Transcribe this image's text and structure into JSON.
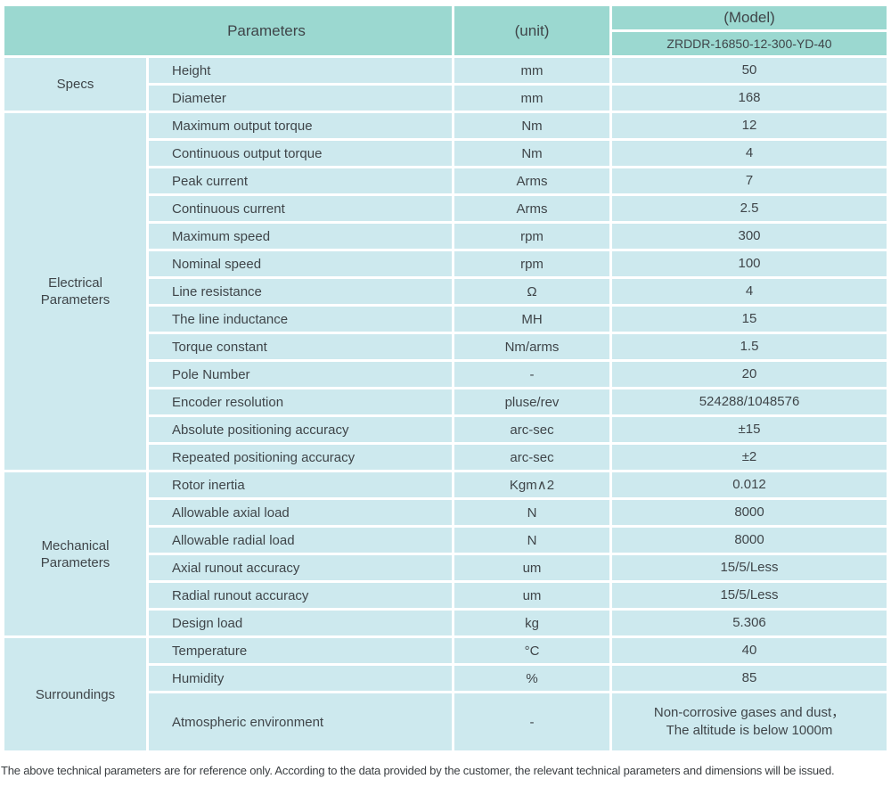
{
  "table": {
    "header": {
      "parameters_label": "Parameters",
      "unit_label": "(unit)",
      "model_label": "(Model)",
      "model_value": "ZRDDR-16850-12-300-YD-40"
    },
    "sections": [
      {
        "name": "Specs",
        "rows": [
          {
            "param": "Height",
            "unit": "mm",
            "value": "50"
          },
          {
            "param": "Diameter",
            "unit": "mm",
            "value": "168"
          }
        ]
      },
      {
        "name": "Electrical\nParameters",
        "rows": [
          {
            "param": "Maximum output torque",
            "unit": "Nm",
            "value": "12"
          },
          {
            "param": "Continuous output torque",
            "unit": "Nm",
            "value": "4"
          },
          {
            "param": "Peak current",
            "unit": "Arms",
            "value": "7"
          },
          {
            "param": "Continuous current",
            "unit": "Arms",
            "value": "2.5"
          },
          {
            "param": "Maximum speed",
            "unit": "rpm",
            "value": "300"
          },
          {
            "param": "Nominal speed",
            "unit": "rpm",
            "value": "100"
          },
          {
            "param": "Line resistance",
            "unit": "Ω",
            "value": "4"
          },
          {
            "param": "The line inductance",
            "unit": "MH",
            "value": "15"
          },
          {
            "param": "Torque constant",
            "unit": "Nm/arms",
            "value": "1.5"
          },
          {
            "param": "Pole Number",
            "unit": "-",
            "value": "20"
          },
          {
            "param": "Encoder resolution",
            "unit": "pluse/rev",
            "value": "524288/1048576"
          },
          {
            "param": "Absolute positioning accuracy",
            "unit": "arc-sec",
            "value": "±15"
          },
          {
            "param": "Repeated positioning accuracy",
            "unit": "arc-sec",
            "value": "±2"
          }
        ]
      },
      {
        "name": "Mechanical\nParameters",
        "rows": [
          {
            "param": "Rotor inertia",
            "unit": "Kgm∧2",
            "value": "0.012"
          },
          {
            "param": "Allowable axial load",
            "unit": "N",
            "value": "8000"
          },
          {
            "param": "Allowable radial load",
            "unit": "N",
            "value": "8000"
          },
          {
            "param": "Axial runout accuracy",
            "unit": "um",
            "value": "15/5/Less"
          },
          {
            "param": "Radial runout accuracy",
            "unit": "um",
            "value": "15/5/Less"
          },
          {
            "param": "Design load",
            "unit": "kg",
            "value": "5.306"
          }
        ]
      },
      {
        "name": "Surroundings",
        "rows": [
          {
            "param": "Temperature",
            "unit": "°C",
            "value": "40"
          },
          {
            "param": "Humidity",
            "unit": "%",
            "value": "85"
          },
          {
            "param": "Atmospheric environment",
            "unit": "-",
            "value": "Non-corrosive gases and dust，\nThe altitude is below 1000m"
          }
        ]
      }
    ]
  },
  "footer": {
    "note": "The above technical parameters are for reference only. According to the data provided by the customer, the relevant technical parameters and dimensions will be issued."
  },
  "colors": {
    "header_teal": "#9bd8d0",
    "cell_blue": "#cde9ee",
    "text": "#3f4549",
    "gap_white": "#ffffff"
  }
}
